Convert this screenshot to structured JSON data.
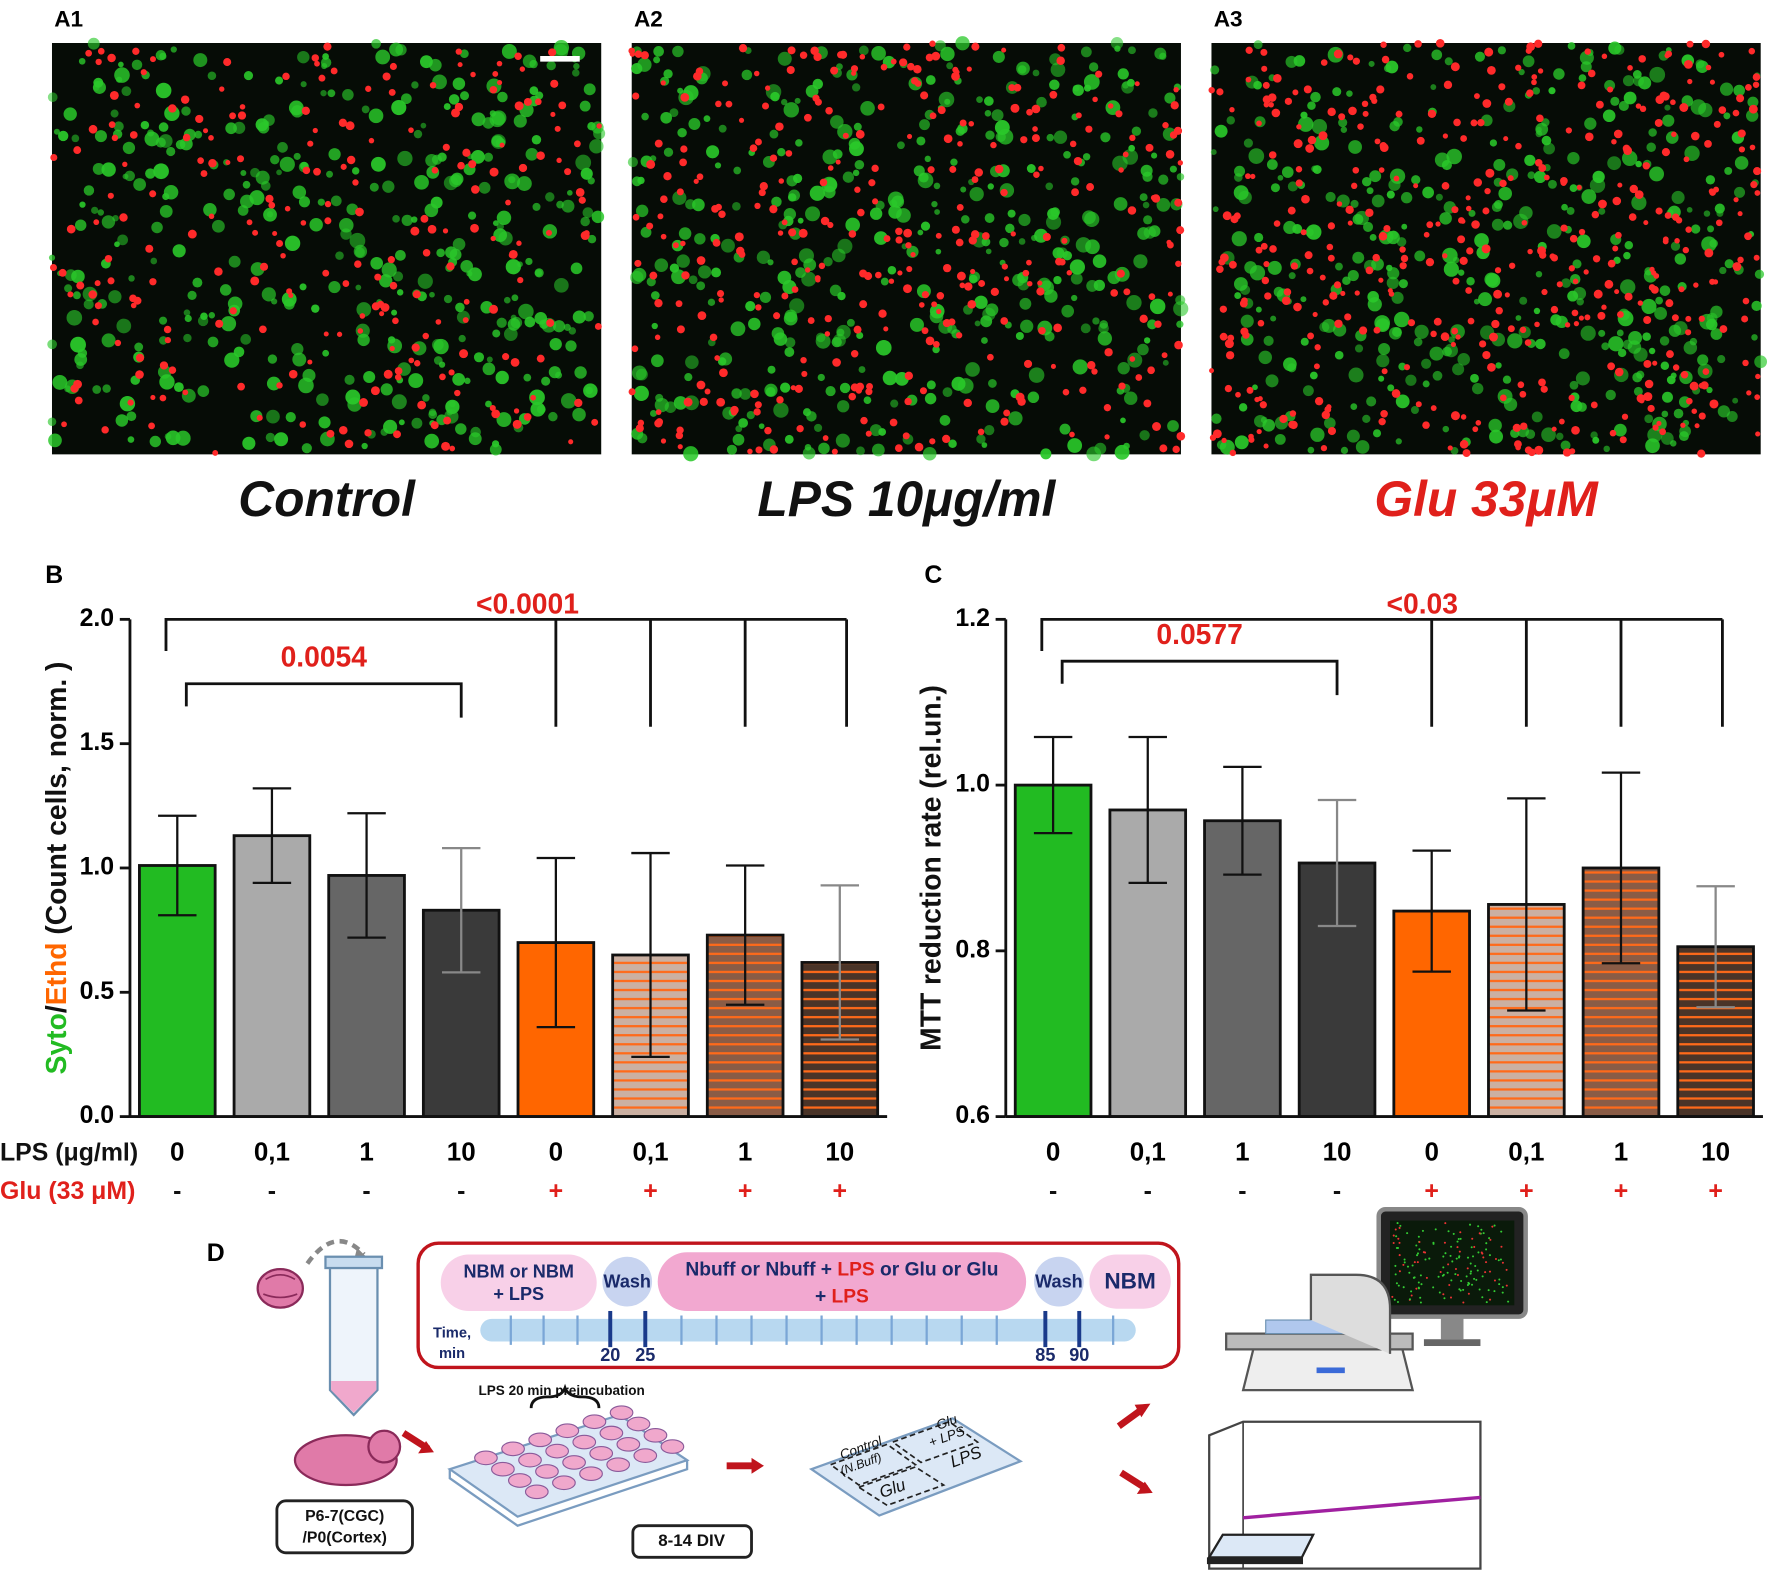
{
  "panels": [
    {
      "label": "A1",
      "caption": "Control",
      "caption_color": "#111111"
    },
    {
      "label": "A2",
      "caption": "LPS 10μg/ml",
      "caption_color": "#111111"
    },
    {
      "label": "A3",
      "caption": "Glu 33μM",
      "caption_color": "#e0201b"
    }
  ],
  "chart_data": [
    {
      "type": "bar",
      "panel_label": "B",
      "ylabel_parts": [
        {
          "text": "Syto",
          "color": "#22bb22"
        },
        {
          "text": "/",
          "color": "#111111"
        },
        {
          "text": "Ethd",
          "color": "#ff6600"
        },
        {
          "text": " (Count cells, norm. )",
          "color": "#111111"
        }
      ],
      "row_labels": [
        {
          "text": "LPS (μg/ml)",
          "color": "#111111"
        },
        {
          "text": "Glu (33 μM)",
          "color": "#e0201b"
        }
      ],
      "categories": [
        "0",
        "0,1",
        "1",
        "10",
        "0",
        "0,1",
        "1",
        "10"
      ],
      "glu": [
        "-",
        "-",
        "-",
        "-",
        "+",
        "+",
        "+",
        "+"
      ],
      "values": [
        1.01,
        1.13,
        0.97,
        0.83,
        0.7,
        0.65,
        0.73,
        0.62
      ],
      "errors": [
        0.2,
        0.19,
        0.25,
        0.25,
        0.34,
        0.41,
        0.28,
        0.31
      ],
      "colors": [
        "#22bb22",
        "#aaaaaa",
        "#666666",
        "#3a3a3a",
        "#ff6600",
        "#cbb0a2",
        "#8a5c46",
        "#4a3428"
      ],
      "hatched": [
        false,
        false,
        false,
        false,
        false,
        true,
        true,
        true
      ],
      "hatch_color": "#ff6a1a",
      "ylim": [
        0,
        2
      ],
      "yticks": [
        {
          "value": 0,
          "label": "0.0"
        },
        0.5,
        {
          "value": 1,
          "label": "1.0"
        },
        1.5,
        {
          "value": 2,
          "label": "2.0"
        }
      ],
      "comparisons": [
        {
          "label": "0.0054"
        },
        {
          "label": "<0.0001"
        }
      ],
      "annotation_color": "#e0201b"
    },
    {
      "type": "bar",
      "panel_label": "C",
      "ylabel_parts": [
        {
          "text": "MTT reduction rate (rel.un.)",
          "color": "#111111"
        }
      ],
      "categories": [
        "0",
        "0,1",
        "1",
        "10",
        "0",
        "0,1",
        "1",
        "10"
      ],
      "glu": [
        "-",
        "-",
        "-",
        "-",
        "+",
        "+",
        "+",
        "+"
      ],
      "values": [
        1.0,
        0.97,
        0.957,
        0.906,
        0.848,
        0.856,
        0.9,
        0.805
      ],
      "errors": [
        0.058,
        0.088,
        0.065,
        0.076,
        0.073,
        0.128,
        0.115,
        0.073
      ],
      "colors": [
        "#22bb22",
        "#aaaaaa",
        "#666666",
        "#3a3a3a",
        "#ff6600",
        "#cbb0a2",
        "#8a5c46",
        "#4a3428"
      ],
      "hatched": [
        false,
        false,
        false,
        false,
        false,
        true,
        true,
        true
      ],
      "hatch_color": "#ff6a1a",
      "ylim": [
        0.6,
        1.2
      ],
      "yticks": [
        0.6,
        0.8,
        {
          "value": 1,
          "label": "1.0"
        },
        1.2
      ],
      "comparisons": [
        {
          "label": "0.0577"
        },
        {
          "label": "<0.03"
        }
      ],
      "annotation_color": "#e0201b"
    }
  ],
  "diagram": {
    "label": "D",
    "phase1": "NBM or NBM",
    "phase1b": "+ LPS",
    "wash1": "Wash",
    "phase2_line1": [
      "Nbuff or Nbuff + ",
      "LPS",
      " or Glu or Glu"
    ],
    "phase2_line2": [
      "+ ",
      "LPS"
    ],
    "wash2": "Wash",
    "phase3": "NBM",
    "time_label": [
      "Time,",
      "min"
    ],
    "time_marks": [
      20,
      25,
      85,
      90
    ],
    "preincubation": "LPS  20 min preincubation",
    "animal": [
      "P6-7(CGC)",
      "/P0(Cortex)"
    ],
    "div": "8-14 DIV",
    "plate_labels": [
      "Control",
      "(N.Buff)",
      "Glu",
      "+ LPS",
      "LPS",
      "Glu"
    ]
  }
}
